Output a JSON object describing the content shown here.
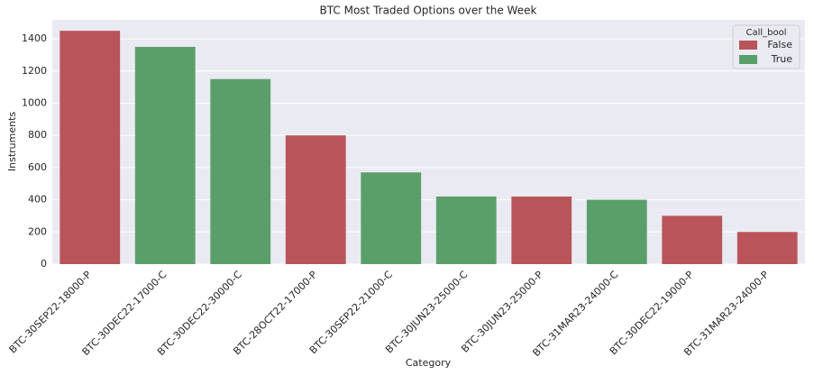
{
  "chart_data": {
    "type": "bar",
    "title": "BTC Most Traded Options over the Week",
    "x_label": "Category",
    "y_label": "Instruments",
    "categories": [
      "BTC-30SEP22-18000-P",
      "BTC-30DEC22-17000-C",
      "BTC-30DEC22-30000-C",
      "BTC-28OCT22-17000-P",
      "BTC-30SEP22-21000-C",
      "BTC-30JUN23-25000-C",
      "BTC-30JUN23-25000-P",
      "BTC-31MAR23-24000-C",
      "BTC-30DEC22-19000-P",
      "BTC-31MAR23-24000-P"
    ],
    "legend_title": "Call_bool",
    "legend_position": "upper right",
    "series": [
      {
        "name": "False",
        "color": "#b9555a",
        "values": [
          1450,
          null,
          null,
          800,
          null,
          null,
          420,
          null,
          300,
          200
        ]
      },
      {
        "name": "True",
        "color": "#5a9f6a",
        "values": [
          null,
          1350,
          1150,
          null,
          570,
          420,
          null,
          400,
          null,
          null
        ]
      }
    ],
    "ylim": [
      0,
      1518
    ],
    "yticks": [
      0,
      200,
      400,
      600,
      800,
      1000,
      1200,
      1400
    ],
    "grid": true
  }
}
